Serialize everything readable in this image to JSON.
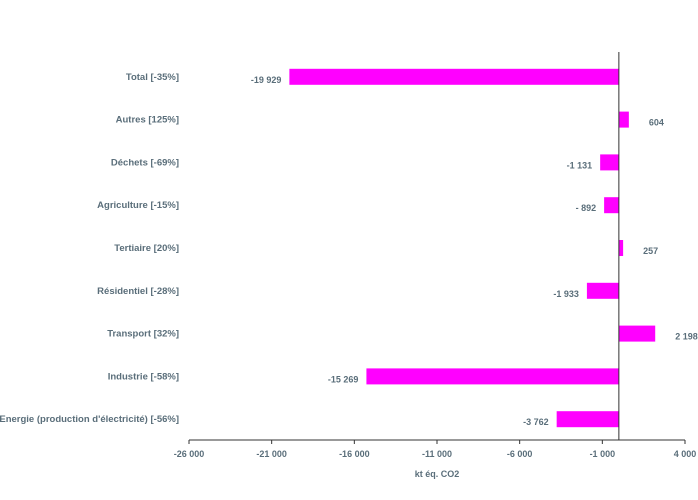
{
  "chart_data": {
    "type": "bar",
    "orientation": "horizontal",
    "categories": [
      "Total [-35%]",
      "Autres [125%]",
      "Déchets [-69%]",
      "Agriculture [-15%]",
      "Tertiaire  [20%]",
      "Résidentiel  [-28%]",
      "Transport [32%]",
      "Industrie [-58%]",
      "Energie (production d'électricité) [-56%]"
    ],
    "values": [
      -19929,
      604,
      -1131,
      -892,
      257,
      -1933,
      2198,
      -15269,
      -3762
    ],
    "value_labels": [
      "-19 929",
      "604",
      "-1 131",
      "- 892",
      "257",
      "-1 933",
      "2 198",
      "-15 269",
      "-3 762"
    ],
    "xlabel": "kt éq. CO2",
    "ylabel": "",
    "xlim": [
      -26000,
      4000
    ],
    "xticks": [
      -26000,
      -21000,
      -16000,
      -11000,
      -6000,
      -1000,
      4000
    ],
    "xtick_labels": [
      "-26 000",
      "-21 000",
      "-16 000",
      "-11 000",
      "-6 000",
      "-1 000",
      "4 000"
    ],
    "bar_color": "#ff00ff",
    "grid": false,
    "legend": "none"
  }
}
